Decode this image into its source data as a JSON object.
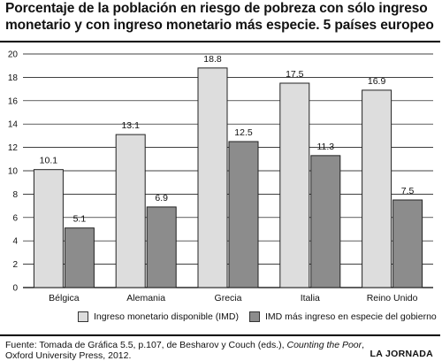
{
  "title_line1": "Porcentaje de la población en riesgo de pobreza con sólo ingreso",
  "title_line2": "monetario y con ingreso monetario más especie. 5 países europeo",
  "chart_data": {
    "type": "bar",
    "categories": [
      "Bélgica",
      "Alemania",
      "Grecia",
      "Italia",
      "Reino Unido"
    ],
    "series": [
      {
        "name": "Ingreso monetario disponible (IMD)",
        "values": [
          10.1,
          13.1,
          18.8,
          17.5,
          16.9
        ],
        "color": "#dddddd"
      },
      {
        "name": "IMD más ingreso en especie del gobierno",
        "values": [
          5.1,
          6.9,
          12.5,
          11.3,
          7.5
        ],
        "color": "#8c8c8c"
      }
    ],
    "yticks": [
      0,
      2,
      4,
      6,
      8,
      10,
      12,
      14,
      16,
      18,
      20
    ],
    "ylim": [
      0,
      20
    ],
    "grid": true,
    "legend_position": "bottom"
  },
  "footer": {
    "source_prefix": "Fuente: Tomada de Gráfica 5.5, p.107, de Besharov y Couch (eds.), ",
    "source_title": "Counting the Poor",
    "source_suffix": ",",
    "source_line2": "Oxford University Press, 2012.",
    "brand": "LA JORNADA"
  }
}
